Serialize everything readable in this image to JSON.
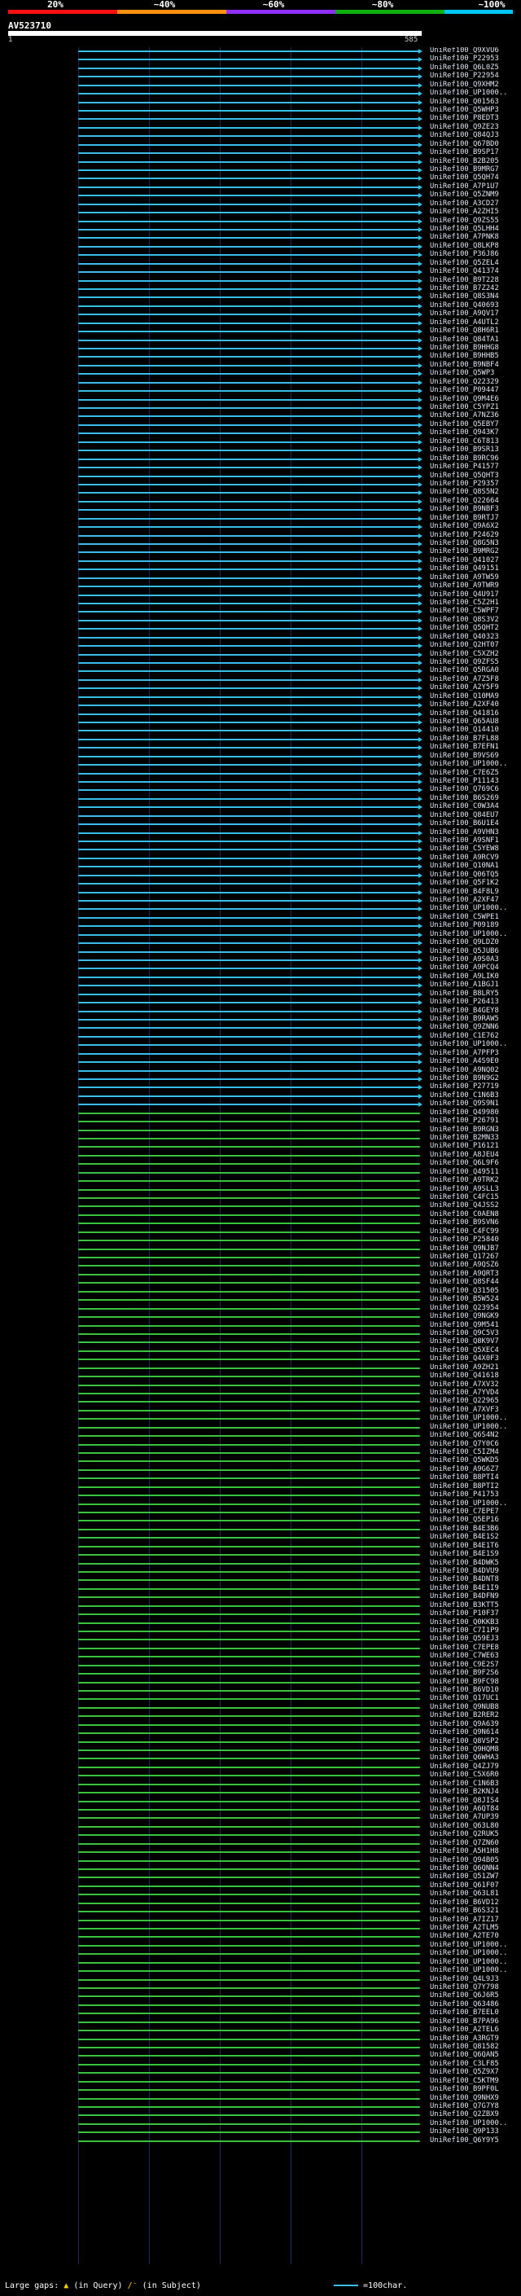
{
  "legend": {
    "ticks": [
      "20%",
      "~40%",
      "~60%",
      "~80%",
      "~100%"
    ],
    "colors": [
      "#ff1010",
      "#ff9010",
      "#9030ff",
      "#10b010",
      "#00c8ff"
    ]
  },
  "query": {
    "id": "AV523710",
    "start_label": "1",
    "end_label": "585"
  },
  "footer": {
    "large_gaps_label": "Large gaps:",
    "query_gap_desc": "(in Query)",
    "subject_gap_desc": "(in Subject)",
    "scale_desc": "=100char."
  },
  "hits": {
    "color_blue": "#36bde8",
    "color_green": "#38c23e",
    "rows": [
      "UniRef100_Q9XVU6",
      "UniRef100_P22953",
      "UniRef100_Q6L0Z5",
      "UniRef100_P22954",
      "UniRef100_Q9XHM2",
      "UniRef100_UP1000..",
      "UniRef100_Q01563",
      "UniRef100_Q5WHP3",
      "UniRef100_P8EDT3",
      "UniRef100_Q9ZE23",
      "UniRef100_Q84QJ3",
      "UniRef100_Q67BD0",
      "UniRef100_B9SP17",
      "UniRef100_B2B205",
      "UniRef100_B9MRG7",
      "UniRef100_Q5QH74",
      "UniRef100_A7P1U7",
      "UniRef100_Q5ZNM9",
      "UniRef100_A3CD27",
      "UniRef100_A2ZHI5",
      "UniRef100_Q9ZS55",
      "UniRef100_Q5LHH4",
      "UniRef100_A7PNK8",
      "UniRef100_Q8LKP8",
      "UniRef100_P36J86",
      "UniRef100_Q5ZEL4",
      "UniRef100_Q41374",
      "UniRef100_B9T228",
      "UniRef100_B7Z242",
      "UniRef100_Q8S3N4",
      "UniRef100_Q40693",
      "UniRef100_A9QV17",
      "UniRef100_A4UTL2",
      "UniRef100_Q8H6R1",
      "UniRef100_Q84TA1",
      "UniRef100_B9HHG8",
      "UniRef100_B9HHB5",
      "UniRef100_B9NBF4",
      "UniRef100_Q5WP3",
      "UniRef100_Q22329",
      "UniRef100_P09447",
      "UniRef100_Q9M4E6",
      "UniRef100_C5YPZ1",
      "UniRef100_A7NZ36",
      "UniRef100_Q5EBY7",
      "UniRef100_Q943K7",
      "UniRef100_C6T813",
      "UniRef100_B9SR13",
      "UniRef100_B9RC96",
      "UniRef100_P41577",
      "UniRef100_Q5QHT3",
      "UniRef100_P29357",
      "UniRef100_Q8S5N2",
      "UniRef100_Q22664",
      "UniRef100_B9NBF3",
      "UniRef100_B9RTJ7",
      "UniRef100_Q9A6X2",
      "UniRef100_P24629",
      "UniRef100_Q8G5N3",
      "UniRef100_B9MRG2",
      "UniRef100_Q41027",
      "UniRef100_Q49151",
      "UniRef100_A9TW59",
      "UniRef100_A9TWR9",
      "UniRef100_Q4U917",
      "UniRef100_C5Z2H1",
      "UniRef100_C5WPF7",
      "UniRef100_Q8S3V2",
      "UniRef100_Q5QHT2",
      "UniRef100_Q40323",
      "UniRef100_Q2HT07",
      "UniRef100_C5XZH2",
      "UniRef100_Q9ZFS5",
      "UniRef100_Q5RGA0",
      "UniRef100_A7Z5F8",
      "UniRef100_A2Y5F9",
      "UniRef100_Q10MA9",
      "UniRef100_A2XF40",
      "UniRef100_Q41816",
      "UniRef100_Q65AU8",
      "UniRef100_Q14410",
      "UniRef100_B7FL88",
      "UniRef100_B7EFN1",
      "UniRef100_B9VS69",
      "UniRef100_UP1000..",
      "UniRef100_C7E6Z5",
      "UniRef100_P11143",
      "UniRef100_Q769C6",
      "UniRef100_B6S269",
      "UniRef100_C0W3A4",
      "UniRef100_Q84EU7",
      "UniRef100_B6U1E4",
      "UniRef100_A9VHN3",
      "UniRef100_A9SNF1",
      "UniRef100_C5YEW8",
      "UniRef100_A9RCV9",
      "UniRef100_Q10NA1",
      "UniRef100_Q06TQ5",
      "UniRef100_Q5F1K2",
      "UniRef100_B4F8L9",
      "UniRef100_A2XF47",
      "UniRef100_UP1000..",
      "UniRef100_C5WPE1",
      "UniRef100_P09189",
      "UniRef100_UP1000..",
      "UniRef100_Q9LDZ0",
      "UniRef100_Q5JUB6",
      "UniRef100_A9S0A3",
      "UniRef100_A9PCQ4",
      "UniRef100_A9LIK0",
      "UniRef100_A1BGJ1",
      "UniRef100_B8LRY5",
      "UniRef100_P26413",
      "UniRef100_B4GEY8",
      "UniRef100_B9RAW5",
      "UniRef100_Q9ZNN6",
      "UniRef100_C1E762",
      "UniRef100_UP1000..",
      "UniRef100_A7PFP3",
      "UniRef100_A4S9E0",
      "UniRef100_A9NQ02",
      "UniRef100_B9N9G2",
      "UniRef100_P27719",
      "UniRef100_C1N6B3",
      "UniRef100_Q9S9N1",
      "UniRef100_Q49980",
      "UniRef100_P26791",
      "UniRef100_B9RGN3",
      "UniRef100_B2MN33",
      "UniRef100_P16121",
      "UniRef100_A8JEU4",
      "UniRef100_Q6L9F6",
      "UniRef100_Q49511",
      "UniRef100_A9TRK2",
      "UniRef100_A9SLL3",
      "UniRef100_C4FC15",
      "UniRef100_Q4JSS2",
      "UniRef100_C0AEN8",
      "UniRef100_B9SVN6",
      "UniRef100_C4FC99",
      "UniRef100_P25840",
      "UniRef100_Q9NJB7",
      "UniRef100_Q17267",
      "UniRef100_A9QSZ6",
      "UniRef100_A9QRT3",
      "UniRef100_Q8SF44",
      "UniRef100_Q31505",
      "UniRef100_B5W524",
      "UniRef100_Q23954",
      "UniRef100_Q9NGK9",
      "UniRef100_Q9M541",
      "UniRef100_Q9C5V3",
      "UniRef100_Q8K9V7",
      "UniRef100_Q5XEC4",
      "UniRef100_Q4X0F3",
      "UniRef100_A9ZH21",
      "UniRef100_Q41618",
      "UniRef100_A7XV32",
      "UniRef100_A7YVD4",
      "UniRef100_Q22965",
      "UniRef100_A7XVF3",
      "UniRef100_UP1000..",
      "UniRef100_UP1000..",
      "UniRef100_Q6S4N2",
      "UniRef100_Q7Y0C6",
      "UniRef100_C5IZM4",
      "UniRef100_Q5WKD5",
      "UniRef100_A9G6Z7",
      "UniRef100_B8PTI4",
      "UniRef100_B8PTI2",
      "UniRef100_P41753",
      "UniRef100_UP1000..",
      "UniRef100_C7EPE7",
      "UniRef100_Q5EP16",
      "UniRef100_B4E3B6",
      "UniRef100_B4E1S2",
      "UniRef100_B4E1T6",
      "UniRef100_B4E1S9",
      "UniRef100_B4DWK5",
      "UniRef100_B4DVU9",
      "UniRef100_B4DNT8",
      "UniRef100_B4E1I9",
      "UniRef100_B4DFN9",
      "UniRef100_B3KTT5",
      "UniRef100_P10F37",
      "UniRef100_Q0KKB3",
      "UniRef100_C7I1P9",
      "UniRef100_Q59EJ3",
      "UniRef100_C7EPE8",
      "UniRef100_C7WE63",
      "UniRef100_C9E2S7",
      "UniRef100_B9F2S6",
      "UniRef100_B9FC98",
      "UniRef100_B6VD10",
      "UniRef100_Q17UC1",
      "UniRef100_Q9NUB8",
      "UniRef100_B2RER2",
      "UniRef100_Q9A639",
      "UniRef100_Q9N614",
      "UniRef100_Q8VSP2",
      "UniRef100_Q9HQM8",
      "UniRef100_Q6WHA3",
      "UniRef100_Q4ZJ79",
      "UniRef100_C5X6R0",
      "UniRef100_C1N6B3",
      "UniRef100_B2KNJ4",
      "UniRef100_Q8JIS4",
      "UniRef100_A6QT84",
      "UniRef100_A7UP39",
      "UniRef100_Q63L80",
      "UniRef100_Q2RUK5",
      "UniRef100_Q7ZN60",
      "UniRef100_A5H1H8",
      "UniRef100_Q94B05",
      "UniRef100_Q6QNN4",
      "UniRef100_Q51ZW7",
      "UniRef100_Q61F07",
      "UniRef100_Q63L81",
      "UniRef100_B6VD12",
      "UniRef100_B6S321",
      "UniRef100_A7IZ17",
      "UniRef100_A2TLM5",
      "UniRef100_A2TE70",
      "UniRef100_UP1000..",
      "UniRef100_UP1000..",
      "UniRef100_UP1000..",
      "UniRef100_UP1000..",
      "UniRef100_Q4L9J3",
      "UniRef100_Q7Y798",
      "UniRef100_Q6J6R5",
      "UniRef100_Q63486",
      "UniRef100_B7EEL0",
      "UniRef100_B7PA96",
      "UniRef100_A2TEL6",
      "UniRef100_A3RGT9",
      "UniRef100_Q81582",
      "UniRef100_Q6QAN5",
      "UniRef100_C3LF85",
      "UniRef100_Q5Z9X7",
      "UniRef100_C5KTM9",
      "UniRef100_B9PF0L",
      "UniRef100_Q9NHX9",
      "UniRef100_Q7G7Y8",
      "UniRef100_Q2ZBX9",
      "UniRef100_UP1000..",
      "UniRef100_Q9P133",
      "UniRef100_Q6Y9Y5"
    ]
  }
}
